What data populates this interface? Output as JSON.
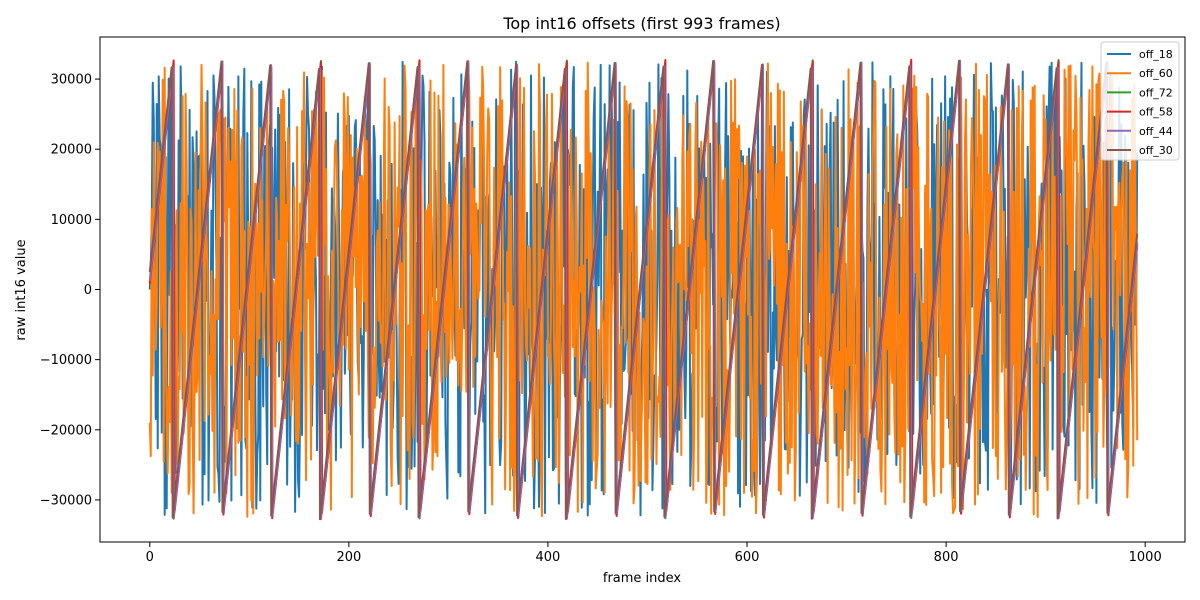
{
  "chart_data": {
    "type": "line",
    "title": "Top int16 offsets (first 993 frames)",
    "xlabel": "frame index",
    "ylabel": "raw int16 value",
    "xlim": [
      -50,
      1040
    ],
    "ylim": [
      -36000,
      36000
    ],
    "xticks": [
      0,
      200,
      400,
      600,
      800,
      1000
    ],
    "yticks": [
      -30000,
      -20000,
      -10000,
      0,
      10000,
      20000,
      30000
    ],
    "xtick_labels": [
      "0",
      "200",
      "400",
      "600",
      "800",
      "1000"
    ],
    "ytick_labels": [
      "−30000",
      "−20000",
      "−10000",
      "0",
      "10000",
      "20000",
      "30000"
    ],
    "grid": false,
    "legend_position": "top-right",
    "n_frames": 993,
    "series": [
      {
        "name": "off_18",
        "color": "#1f77b4",
        "pattern": "noise",
        "seed": 18,
        "first": 0,
        "last": 19500
      },
      {
        "name": "off_60",
        "color": "#ff7f0e",
        "pattern": "noise",
        "seed": 60,
        "first": -19000,
        "last": -21500
      },
      {
        "name": "off_72",
        "color": "#2ca02c",
        "pattern": "sawtooth",
        "start": 1000,
        "slope": 1240,
        "phase": 0
      },
      {
        "name": "off_58",
        "color": "#d62728",
        "pattern": "sawtooth",
        "start": 800,
        "slope": 1240,
        "phase": 2
      },
      {
        "name": "off_44",
        "color": "#9467bd",
        "pattern": "sawtooth",
        "start": 1200,
        "slope": 1240,
        "phase": 1
      },
      {
        "name": "off_30",
        "color": "#8c564b",
        "pattern": "sawtooth",
        "start": 2500,
        "slope": 1240,
        "phase": 0
      }
    ]
  }
}
